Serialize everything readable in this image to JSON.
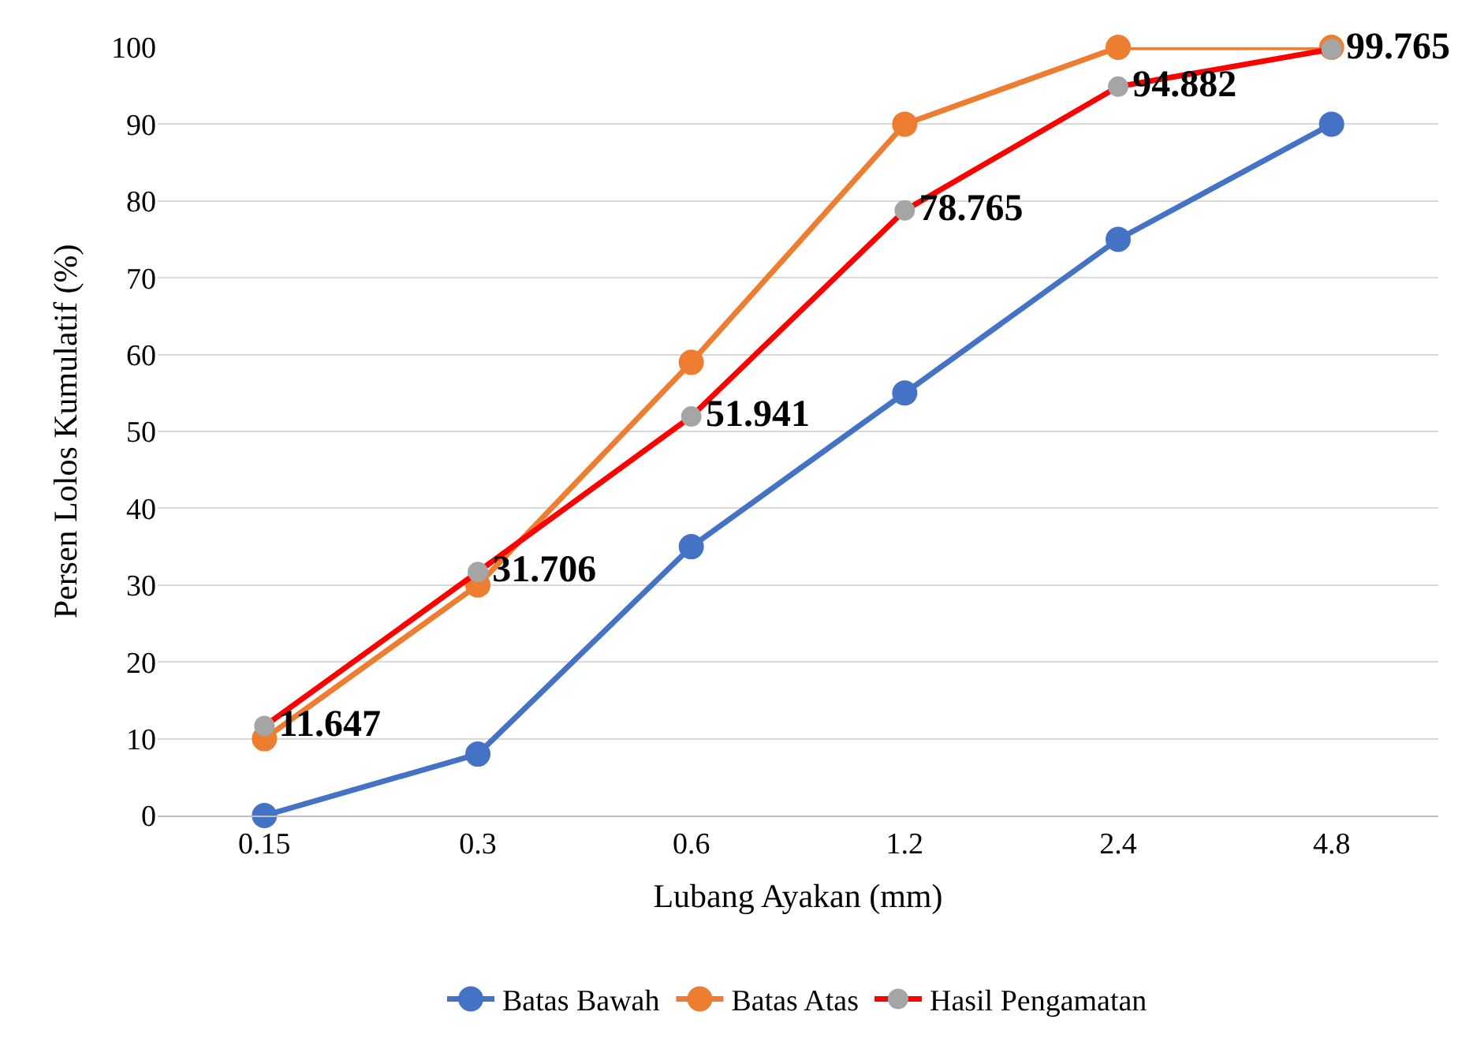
{
  "chart_data": {
    "type": "line",
    "xlabel": "Lubang Ayakan (mm)",
    "ylabel": "Persen Lolos Kumulatif (%)",
    "categories": [
      "0.15",
      "0.3",
      "0.6",
      "1.2",
      "2.4",
      "4.8"
    ],
    "series": [
      {
        "name": "Batas Bawah",
        "color": "#4472c4",
        "values": [
          0,
          8,
          35,
          55,
          75,
          90
        ]
      },
      {
        "name": "Batas Atas",
        "color": "#ed7d31",
        "values": [
          10,
          30,
          59,
          90,
          100,
          100
        ]
      },
      {
        "name": "Hasil Pengamatan",
        "color": "#ff0000",
        "colors": [
          "#a5a5a5",
          "#a5a5a5",
          "#a5a5a5",
          "#a5a5a5",
          "#a5a5a5",
          "#a5a5a5"
        ],
        "values": [
          11.647,
          31.706,
          51.941,
          78.765,
          94.882,
          99.765
        ],
        "value_labels": [
          "11.647",
          "31.706",
          "51.941",
          "78.765",
          "94.882",
          "99.765"
        ]
      }
    ],
    "ylim": [
      0,
      100
    ],
    "yticks": [
      0,
      10,
      20,
      30,
      40,
      50,
      60,
      70,
      80,
      90,
      100
    ],
    "grid": "y",
    "legend": "bottom",
    "marker": "circle",
    "line_style": "solid"
  }
}
